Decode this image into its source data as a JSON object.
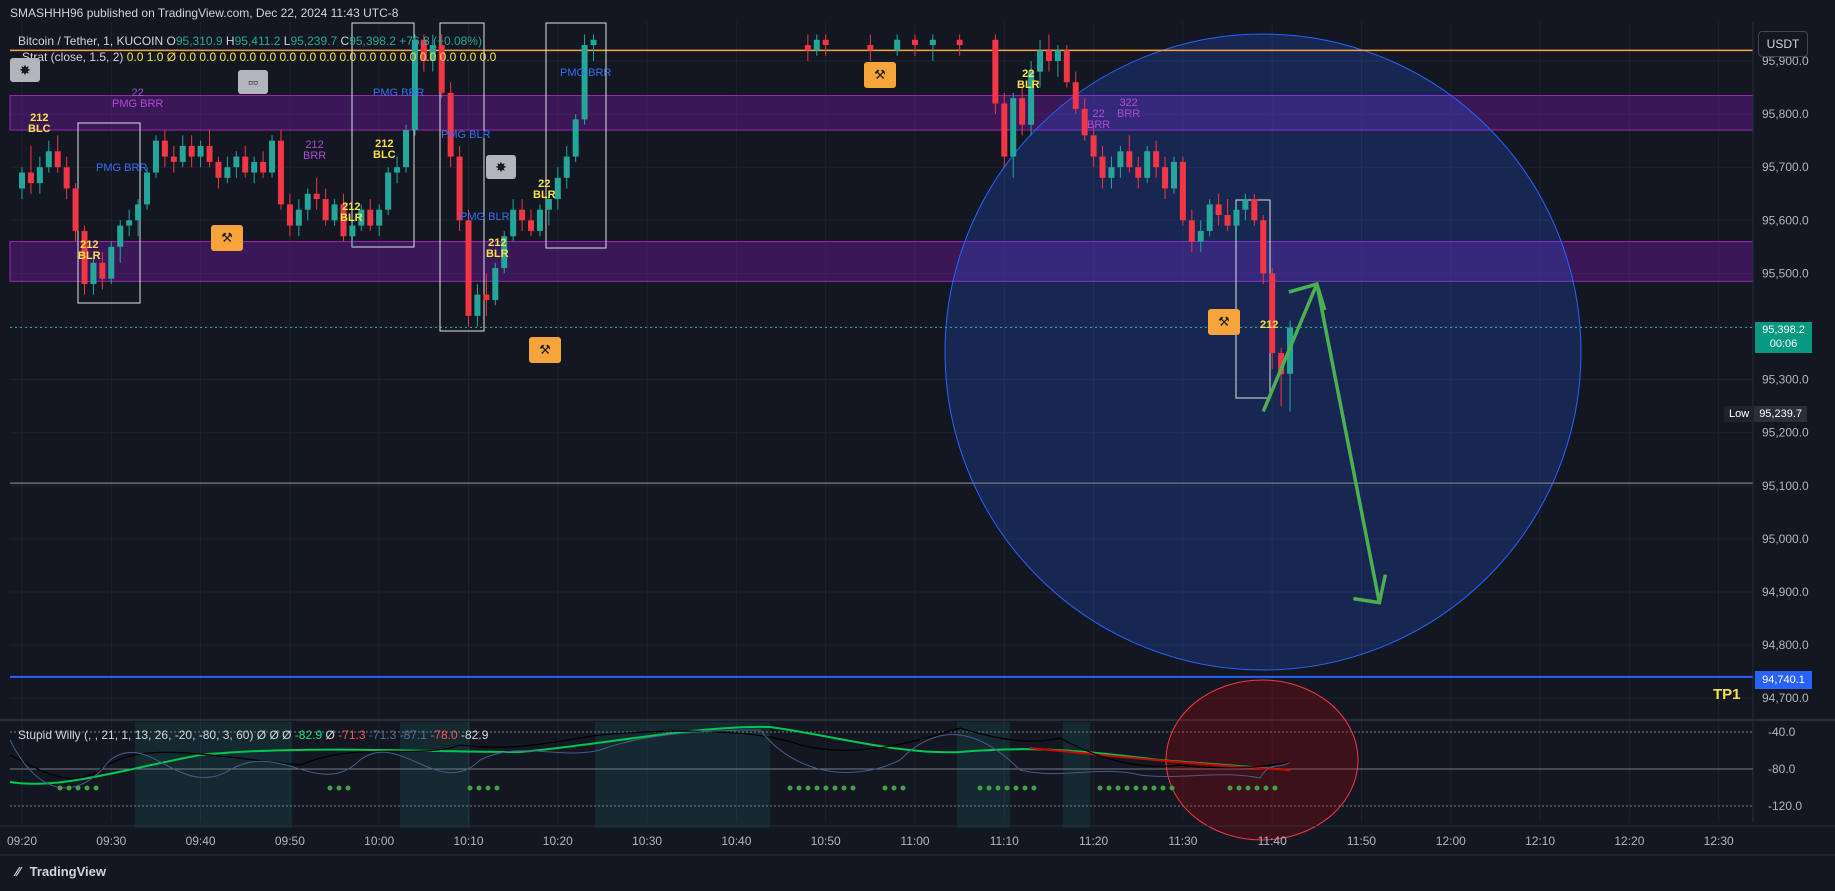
{
  "header": {
    "published": "SMASHHH96 published on TradingView.com, Dec 22, 2024 11:43 UTC-8"
  },
  "legend": {
    "symbol": "Bitcoin / Tether, 1, KUCOIN",
    "o_label": "O",
    "o": "95,310.9",
    "h_label": "H",
    "h": "95,411.2",
    "l_label": "L",
    "l": "95,239.7",
    "c_label": "C",
    "c": "95,398.2",
    "change": "+76.8 (+0.08%)",
    "strat": "Strat (close, 1.5, 2)",
    "strat_values": "0.0 1.0 Ø 0.0 0.0 0.0 0.0 0.0 0.0 0.0 0.0 0.0 0.0 0.0 0.0 0.0 0.0 0.0 0.0"
  },
  "oscillator": {
    "name": "Stupid Willy (, , 21, 1, 13, 26, -20, -80, 3, 60)",
    "values": "Ø Ø Ø",
    "v1": "-82.9",
    "v2": "Ø",
    "v3": "-71.3",
    "v4": "-71.3",
    "v5": "-87.1",
    "v6": "-78.0",
    "v7": "-82.9",
    "ticks": [
      "-40.0",
      "-80.0",
      "-120.0"
    ]
  },
  "price_axis": {
    "currency": "USDT",
    "ticks": [
      "95,900.0",
      "95,800.0",
      "95,700.0",
      "95,600.0",
      "95,500.0",
      "95,400.0",
      "95,300.0",
      "95,200.0",
      "95,100.0",
      "95,000.0",
      "94,900.0",
      "94,800.0",
      "94,700.0"
    ],
    "current_price": "95,398.2",
    "countdown": "00:06",
    "low_label": "Low",
    "low_value": "95,239.7",
    "tp_value": "94,740.1"
  },
  "time_axis": [
    "09:20",
    "09:30",
    "09:40",
    "09:50",
    "10:00",
    "10:10",
    "10:20",
    "10:30",
    "10:40",
    "10:50",
    "11:00",
    "11:10",
    "11:20",
    "11:30",
    "11:40",
    "11:50",
    "12:00",
    "12:10",
    "12:20",
    "12:30"
  ],
  "tp_label": "TP1",
  "footer": {
    "brand": "TradingView"
  },
  "annotations": {
    "labels": [
      {
        "t": "212\nBLC",
        "c": "y"
      },
      {
        "t": "22\nPMG BRR",
        "c": "p"
      },
      {
        "t": "PMG BRR",
        "c": "l"
      },
      {
        "t": "212\nBLR",
        "c": "y"
      },
      {
        "t": "212\nBRR",
        "c": "p"
      },
      {
        "t": "212\nBLR",
        "c": "y"
      },
      {
        "t": "212\nBLC",
        "c": "y"
      },
      {
        "t": "PMG BRR",
        "c": "l"
      },
      {
        "t": "PMG BLR",
        "c": "l"
      },
      {
        "t": "PMG BLR",
        "c": "l"
      },
      {
        "t": "212\nBLR",
        "c": "y"
      },
      {
        "t": "22\nBLR",
        "c": "y"
      },
      {
        "t": "PMG BRR",
        "c": "l"
      },
      {
        "t": "22\nBLR",
        "c": "y"
      },
      {
        "t": "322\nBRR",
        "c": "p"
      },
      {
        "t": "22\nBRR",
        "c": "p"
      },
      {
        "t": "212",
        "c": "y"
      }
    ]
  },
  "colors": {
    "background": "#131722",
    "up": "#26a69a",
    "down": "#f23645",
    "zone": "#6a1b9a",
    "circle": "#2962ff",
    "arrow": "#4caf50",
    "tp_line": "#2962ff",
    "orange_line": "#f7a53b",
    "osc_green": "#00c853",
    "osc_red": "#d50000"
  },
  "chart_data": {
    "type": "candlestick",
    "title": "Bitcoin / Tether, 1, KUCOIN",
    "x_unit": "time (UTC-8)",
    "y_unit": "USDT",
    "ylim": [
      94650,
      95950
    ],
    "xlim": [
      "09:20",
      "12:35"
    ],
    "last": {
      "time": "11:42",
      "open": 95310.9,
      "high": 95411.2,
      "low": 95239.7,
      "close": 95398.2
    },
    "candles": [
      {
        "t": "09:20",
        "o": 95660,
        "h": 95700,
        "l": 95640,
        "c": 95690
      },
      {
        "t": "09:21",
        "o": 95690,
        "h": 95740,
        "l": 95650,
        "c": 95670
      },
      {
        "t": "09:22",
        "o": 95670,
        "h": 95720,
        "l": 95650,
        "c": 95700
      },
      {
        "t": "09:23",
        "o": 95700,
        "h": 95750,
        "l": 95690,
        "c": 95730
      },
      {
        "t": "09:24",
        "o": 95730,
        "h": 95760,
        "l": 95690,
        "c": 95700
      },
      {
        "t": "09:25",
        "o": 95700,
        "h": 95720,
        "l": 95640,
        "c": 95660
      },
      {
        "t": "09:26",
        "o": 95660,
        "h": 95670,
        "l": 95560,
        "c": 95580
      },
      {
        "t": "09:27",
        "o": 95580,
        "h": 95590,
        "l": 95460,
        "c": 95480
      },
      {
        "t": "09:28",
        "o": 95480,
        "h": 95530,
        "l": 95460,
        "c": 95520
      },
      {
        "t": "09:29",
        "o": 95520,
        "h": 95540,
        "l": 95470,
        "c": 95490
      },
      {
        "t": "09:30",
        "o": 95490,
        "h": 95560,
        "l": 95480,
        "c": 95550
      },
      {
        "t": "09:31",
        "o": 95550,
        "h": 95600,
        "l": 95520,
        "c": 95590
      },
      {
        "t": "09:32",
        "o": 95590,
        "h": 95620,
        "l": 95570,
        "c": 95600
      },
      {
        "t": "09:33",
        "o": 95600,
        "h": 95640,
        "l": 95570,
        "c": 95630
      },
      {
        "t": "09:34",
        "o": 95630,
        "h": 95700,
        "l": 95620,
        "c": 95690
      },
      {
        "t": "09:35",
        "o": 95690,
        "h": 95760,
        "l": 95680,
        "c": 95750
      },
      {
        "t": "09:36",
        "o": 95750,
        "h": 95770,
        "l": 95700,
        "c": 95720
      },
      {
        "t": "09:37",
        "o": 95720,
        "h": 95740,
        "l": 95690,
        "c": 95710
      },
      {
        "t": "09:38",
        "o": 95710,
        "h": 95760,
        "l": 95700,
        "c": 95740
      },
      {
        "t": "09:39",
        "o": 95740,
        "h": 95760,
        "l": 95700,
        "c": 95720
      },
      {
        "t": "09:40",
        "o": 95720,
        "h": 95750,
        "l": 95700,
        "c": 95740
      },
      {
        "t": "09:41",
        "o": 95740,
        "h": 95770,
        "l": 95700,
        "c": 95710
      },
      {
        "t": "09:42",
        "o": 95710,
        "h": 95720,
        "l": 95660,
        "c": 95680
      },
      {
        "t": "09:43",
        "o": 95680,
        "h": 95720,
        "l": 95670,
        "c": 95700
      },
      {
        "t": "09:44",
        "o": 95700,
        "h": 95730,
        "l": 95680,
        "c": 95720
      },
      {
        "t": "09:45",
        "o": 95720,
        "h": 95740,
        "l": 95680,
        "c": 95690
      },
      {
        "t": "09:46",
        "o": 95690,
        "h": 95720,
        "l": 95670,
        "c": 95710
      },
      {
        "t": "09:47",
        "o": 95710,
        "h": 95730,
        "l": 95680,
        "c": 95690
      },
      {
        "t": "09:48",
        "o": 95690,
        "h": 95760,
        "l": 95680,
        "c": 95750
      },
      {
        "t": "09:49",
        "o": 95750,
        "h": 95770,
        "l": 95620,
        "c": 95630
      },
      {
        "t": "09:50",
        "o": 95630,
        "h": 95650,
        "l": 95570,
        "c": 95590
      },
      {
        "t": "09:51",
        "o": 95590,
        "h": 95640,
        "l": 95570,
        "c": 95620
      },
      {
        "t": "09:52",
        "o": 95620,
        "h": 95660,
        "l": 95600,
        "c": 95650
      },
      {
        "t": "09:53",
        "o": 95650,
        "h": 95680,
        "l": 95620,
        "c": 95640
      },
      {
        "t": "09:54",
        "o": 95640,
        "h": 95660,
        "l": 95590,
        "c": 95600
      },
      {
        "t": "09:55",
        "o": 95600,
        "h": 95640,
        "l": 95590,
        "c": 95630
      },
      {
        "t": "09:56",
        "o": 95630,
        "h": 95650,
        "l": 95560,
        "c": 95570
      },
      {
        "t": "09:57",
        "o": 95570,
        "h": 95600,
        "l": 95550,
        "c": 95590
      },
      {
        "t": "09:58",
        "o": 95590,
        "h": 95630,
        "l": 95580,
        "c": 95620
      },
      {
        "t": "09:59",
        "o": 95620,
        "h": 95640,
        "l": 95580,
        "c": 95590
      },
      {
        "t": "10:00",
        "o": 95590,
        "h": 95630,
        "l": 95570,
        "c": 95620
      },
      {
        "t": "10:01",
        "o": 95620,
        "h": 95700,
        "l": 95610,
        "c": 95690
      },
      {
        "t": "10:02",
        "o": 95690,
        "h": 95720,
        "l": 95670,
        "c": 95700
      },
      {
        "t": "10:03",
        "o": 95700,
        "h": 95780,
        "l": 95690,
        "c": 95770
      },
      {
        "t": "10:04",
        "o": 95770,
        "h": 95950,
        "l": 95760,
        "c": 95940
      },
      {
        "t": "10:05",
        "o": 95940,
        "h": 95950,
        "l": 95880,
        "c": 95900
      },
      {
        "t": "10:06",
        "o": 95900,
        "h": 95950,
        "l": 95880,
        "c": 95930
      },
      {
        "t": "10:07",
        "o": 95930,
        "h": 95950,
        "l": 95830,
        "c": 95840
      },
      {
        "t": "10:08",
        "o": 95840,
        "h": 95860,
        "l": 95700,
        "c": 95720
      },
      {
        "t": "10:09",
        "o": 95720,
        "h": 95740,
        "l": 95580,
        "c": 95600
      },
      {
        "t": "10:10",
        "o": 95600,
        "h": 95620,
        "l": 95400,
        "c": 95420
      },
      {
        "t": "10:11",
        "o": 95420,
        "h": 95480,
        "l": 95400,
        "c": 95460
      },
      {
        "t": "10:12",
        "o": 95460,
        "h": 95500,
        "l": 95420,
        "c": 95450
      },
      {
        "t": "10:13",
        "o": 95450,
        "h": 95520,
        "l": 95440,
        "c": 95510
      },
      {
        "t": "10:14",
        "o": 95510,
        "h": 95580,
        "l": 95500,
        "c": 95570
      },
      {
        "t": "10:15",
        "o": 95570,
        "h": 95640,
        "l": 95560,
        "c": 95620
      },
      {
        "t": "10:16",
        "o": 95620,
        "h": 95640,
        "l": 95580,
        "c": 95600
      },
      {
        "t": "10:17",
        "o": 95600,
        "h": 95620,
        "l": 95570,
        "c": 95580
      },
      {
        "t": "10:18",
        "o": 95580,
        "h": 95630,
        "l": 95570,
        "c": 95620
      },
      {
        "t": "10:19",
        "o": 95620,
        "h": 95650,
        "l": 95590,
        "c": 95640
      },
      {
        "t": "10:20",
        "o": 95640,
        "h": 95700,
        "l": 95620,
        "c": 95680
      },
      {
        "t": "10:21",
        "o": 95680,
        "h": 95740,
        "l": 95660,
        "c": 95720
      },
      {
        "t": "10:22",
        "o": 95720,
        "h": 95800,
        "l": 95710,
        "c": 95790
      },
      {
        "t": "10:23",
        "o": 95790,
        "h": 95950,
        "l": 95780,
        "c": 95930
      },
      {
        "t": "10:24",
        "o": 95930,
        "h": 95950,
        "l": 95900,
        "c": 95940
      },
      {
        "t": "10:48",
        "o": 95930,
        "h": 95950,
        "l": 95900,
        "c": 95920
      },
      {
        "t": "10:49",
        "o": 95920,
        "h": 95950,
        "l": 95910,
        "c": 95940
      },
      {
        "t": "10:50",
        "o": 95940,
        "h": 95950,
        "l": 95910,
        "c": 95930
      },
      {
        "t": "10:55",
        "o": 95930,
        "h": 95950,
        "l": 95900,
        "c": 95920
      },
      {
        "t": "10:58",
        "o": 95920,
        "h": 95950,
        "l": 95910,
        "c": 95940
      },
      {
        "t": "11:00",
        "o": 95940,
        "h": 95950,
        "l": 95910,
        "c": 95930
      },
      {
        "t": "11:02",
        "o": 95930,
        "h": 95950,
        "l": 95900,
        "c": 95940
      },
      {
        "t": "11:05",
        "o": 95940,
        "h": 95950,
        "l": 95910,
        "c": 95930
      },
      {
        "t": "11:09",
        "o": 95940,
        "h": 95950,
        "l": 95800,
        "c": 95820
      },
      {
        "t": "11:10",
        "o": 95820,
        "h": 95840,
        "l": 95700,
        "c": 95720
      },
      {
        "t": "11:11",
        "o": 95720,
        "h": 95840,
        "l": 95680,
        "c": 95830
      },
      {
        "t": "11:12",
        "o": 95830,
        "h": 95850,
        "l": 95760,
        "c": 95780
      },
      {
        "t": "11:13",
        "o": 95780,
        "h": 95900,
        "l": 95760,
        "c": 95880
      },
      {
        "t": "11:14",
        "o": 95880,
        "h": 95940,
        "l": 95850,
        "c": 95920
      },
      {
        "t": "11:15",
        "o": 95920,
        "h": 95950,
        "l": 95880,
        "c": 95900
      },
      {
        "t": "11:16",
        "o": 95900,
        "h": 95930,
        "l": 95870,
        "c": 95920
      },
      {
        "t": "11:17",
        "o": 95920,
        "h": 95930,
        "l": 95850,
        "c": 95860
      },
      {
        "t": "11:18",
        "o": 95860,
        "h": 95880,
        "l": 95800,
        "c": 95810
      },
      {
        "t": "11:19",
        "o": 95810,
        "h": 95830,
        "l": 95750,
        "c": 95760
      },
      {
        "t": "11:20",
        "o": 95760,
        "h": 95780,
        "l": 95700,
        "c": 95720
      },
      {
        "t": "11:21",
        "o": 95720,
        "h": 95740,
        "l": 95660,
        "c": 95680
      },
      {
        "t": "11:22",
        "o": 95680,
        "h": 95720,
        "l": 95660,
        "c": 95700
      },
      {
        "t": "11:23",
        "o": 95700,
        "h": 95740,
        "l": 95680,
        "c": 95730
      },
      {
        "t": "11:24",
        "o": 95730,
        "h": 95760,
        "l": 95690,
        "c": 95700
      },
      {
        "t": "11:25",
        "o": 95700,
        "h": 95720,
        "l": 95660,
        "c": 95680
      },
      {
        "t": "11:26",
        "o": 95680,
        "h": 95740,
        "l": 95670,
        "c": 95730
      },
      {
        "t": "11:27",
        "o": 95730,
        "h": 95750,
        "l": 95680,
        "c": 95700
      },
      {
        "t": "11:28",
        "o": 95700,
        "h": 95720,
        "l": 95640,
        "c": 95660
      },
      {
        "t": "11:29",
        "o": 95660,
        "h": 95720,
        "l": 95650,
        "c": 95710
      },
      {
        "t": "11:30",
        "o": 95710,
        "h": 95720,
        "l": 95590,
        "c": 95600
      },
      {
        "t": "11:31",
        "o": 95600,
        "h": 95620,
        "l": 95540,
        "c": 95560
      },
      {
        "t": "11:32",
        "o": 95560,
        "h": 95600,
        "l": 95540,
        "c": 95580
      },
      {
        "t": "11:33",
        "o": 95580,
        "h": 95640,
        "l": 95570,
        "c": 95630
      },
      {
        "t": "11:34",
        "o": 95630,
        "h": 95650,
        "l": 95590,
        "c": 95610
      },
      {
        "t": "11:35",
        "o": 95610,
        "h": 95640,
        "l": 95580,
        "c": 95590
      },
      {
        "t": "11:36",
        "o": 95590,
        "h": 95630,
        "l": 95560,
        "c": 95620
      },
      {
        "t": "11:37",
        "o": 95620,
        "h": 95650,
        "l": 95600,
        "c": 95640
      },
      {
        "t": "11:38",
        "o": 95640,
        "h": 95650,
        "l": 95590,
        "c": 95600
      },
      {
        "t": "11:39",
        "o": 95600,
        "h": 95610,
        "l": 95480,
        "c": 95500
      },
      {
        "t": "11:40",
        "o": 95500,
        "h": 95510,
        "l": 95320,
        "c": 95350
      },
      {
        "t": "11:41",
        "o": 95350,
        "h": 95360,
        "l": 95250,
        "c": 95310
      },
      {
        "t": "11:42",
        "o": 95310.9,
        "h": 95411.2,
        "l": 95239.7,
        "c": 95398.2
      }
    ],
    "levels": [
      {
        "name": "orange",
        "price": 95920
      },
      {
        "name": "current",
        "price": 95398.2
      },
      {
        "name": "white",
        "price": 95105
      },
      {
        "name": "TP1",
        "price": 94740.1
      }
    ],
    "zones": [
      {
        "top": 95835,
        "bottom": 95770
      },
      {
        "top": 95560,
        "bottom": 95485
      }
    ],
    "projection": {
      "arrow1": [
        [
          "11:39",
          "95240"
        ],
        [
          "11:45",
          "95480"
        ]
      ],
      "arrow2": [
        [
          "11:45",
          "95480"
        ],
        [
          "11:52",
          "94880"
        ]
      ]
    }
  }
}
